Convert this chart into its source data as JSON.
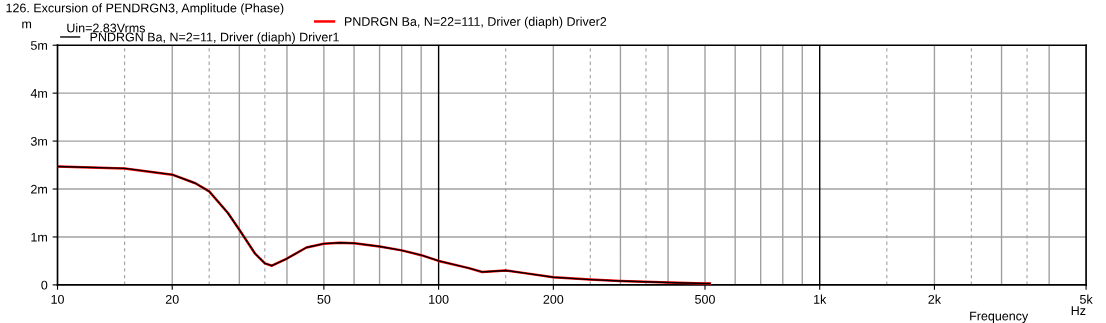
{
  "chart_data": {
    "type": "line",
    "title": "126. Excursion of PENDRGN3, Amplitude (Phase)",
    "xlabel": "Frequency",
    "ylabel": "m",
    "annotations": [
      "Uin=2.83Vrms",
      "Hz"
    ],
    "x": [
      10,
      15,
      20,
      23,
      25,
      28,
      30,
      33,
      35,
      36.5,
      40,
      45,
      50,
      55,
      60,
      70,
      80,
      90,
      100,
      120,
      130,
      150,
      170,
      200,
      250,
      300,
      400,
      500,
      515
    ],
    "series": [
      {
        "name": "PNDRGN Ba, N=22=111, Driver (diaph) Driver2",
        "color": "#ff0000",
        "values": [
          2.47,
          2.43,
          2.3,
          2.12,
          1.95,
          1.5,
          1.15,
          0.65,
          0.45,
          0.4,
          0.55,
          0.78,
          0.86,
          0.88,
          0.87,
          0.8,
          0.72,
          0.62,
          0.5,
          0.35,
          0.27,
          0.3,
          0.24,
          0.16,
          0.11,
          0.08,
          0.05,
          0.03,
          0.03
        ]
      },
      {
        "name": "PNDRGN Ba, N=2=11, Driver (diaph) Driver1",
        "color": "#000000",
        "values": [
          2.47,
          2.43,
          2.3,
          2.12,
          1.95,
          1.5,
          1.15,
          0.65,
          0.45,
          0.4,
          0.55,
          0.78,
          0.86,
          0.88,
          0.87,
          0.8,
          0.72,
          0.62,
          0.5,
          0.35,
          0.27,
          0.3,
          0.24,
          0.16,
          0.11,
          0.08,
          0.05,
          0.03,
          0.03
        ]
      }
    ],
    "log": "x",
    "xlim": [
      10,
      5000
    ],
    "xticks": [
      10,
      20,
      50,
      100,
      200,
      500,
      {
        "value": 1000,
        "label": "1k"
      },
      {
        "value": 2000,
        "label": "2k"
      },
      {
        "value": 5000,
        "label": "5k"
      }
    ],
    "ylim": [
      0,
      5
    ],
    "yticks": [
      0,
      {
        "value": 1,
        "label": "1m"
      },
      {
        "value": 2,
        "label": "2m"
      },
      {
        "value": 3,
        "label": "3m"
      },
      {
        "value": 4,
        "label": "4m"
      },
      {
        "value": 5,
        "label": "5m"
      }
    ],
    "grid": true,
    "legend": "top",
    "line_style": "solid",
    "marker": "none"
  }
}
